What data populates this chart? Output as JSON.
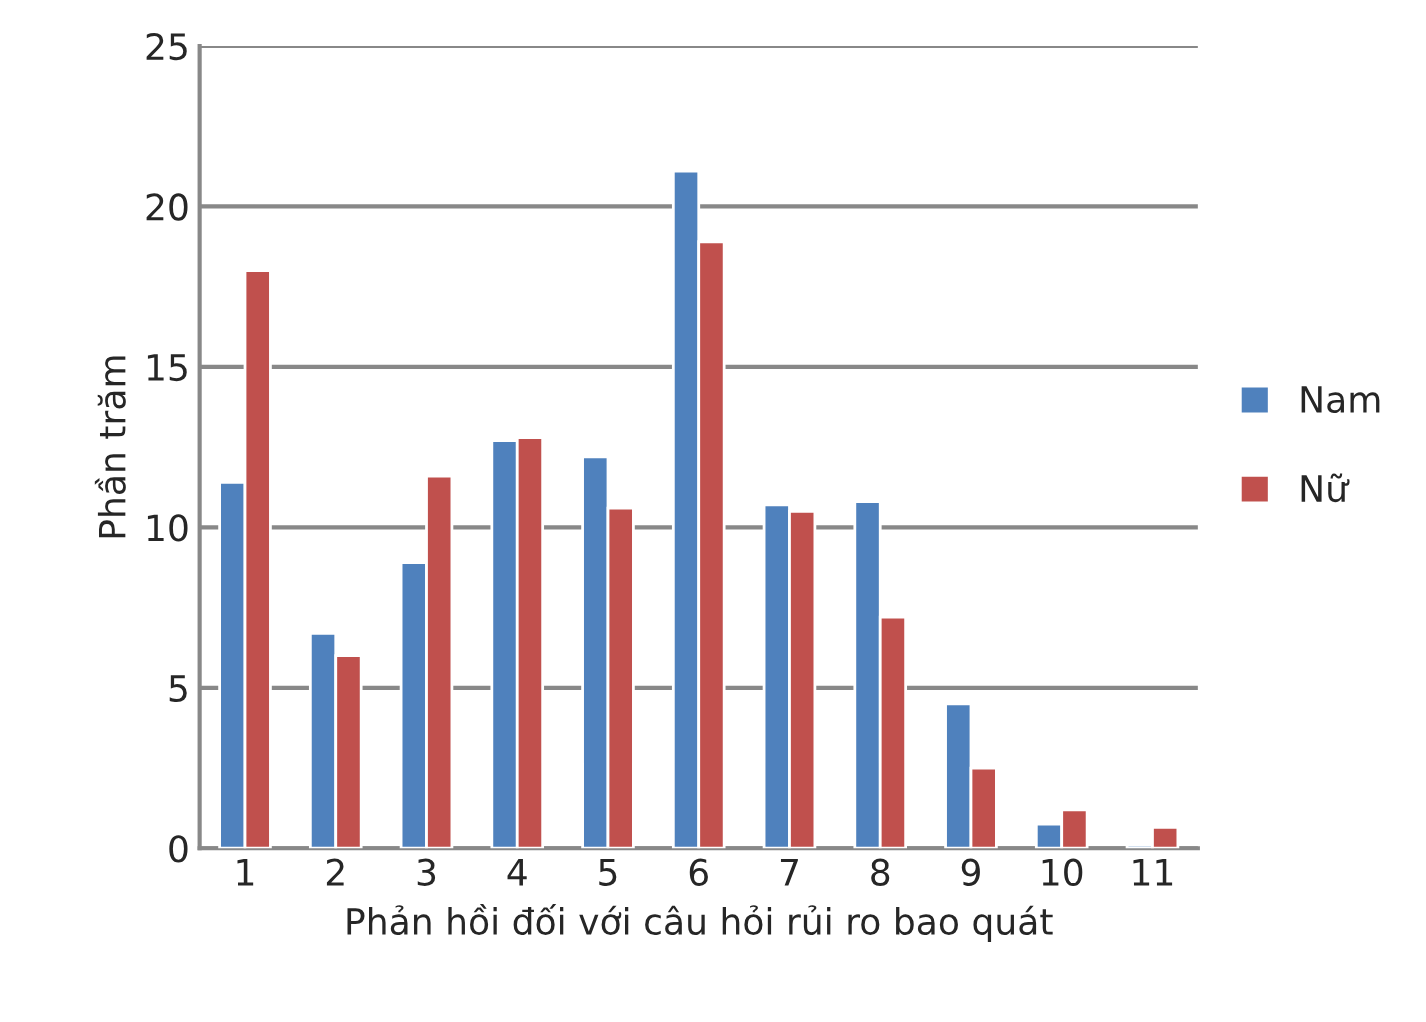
{
  "chart_data": {
    "type": "bar",
    "xlabel": "Phản hồi đối với câu hỏi rủi ro bao quát",
    "ylabel": "Phần trăm",
    "categories": [
      "1",
      "2",
      "3",
      "4",
      "5",
      "6",
      "7",
      "8",
      "9",
      "10",
      "11"
    ],
    "series": [
      {
        "name": "Nam",
        "color": "#4f81bd",
        "values": [
          11.4,
          6.7,
          8.9,
          12.7,
          12.2,
          21.1,
          10.7,
          10.8,
          4.5,
          0.75,
          0.1
        ]
      },
      {
        "name": "Nữ",
        "color": "#c0504d",
        "values": [
          18.0,
          6.0,
          11.6,
          12.8,
          10.6,
          18.9,
          10.5,
          7.2,
          2.5,
          1.2,
          0.65
        ]
      }
    ],
    "ylim": [
      0,
      25
    ],
    "yticks": [
      0,
      5,
      10,
      15,
      20,
      25
    ],
    "grid": "y",
    "legend": "right"
  }
}
